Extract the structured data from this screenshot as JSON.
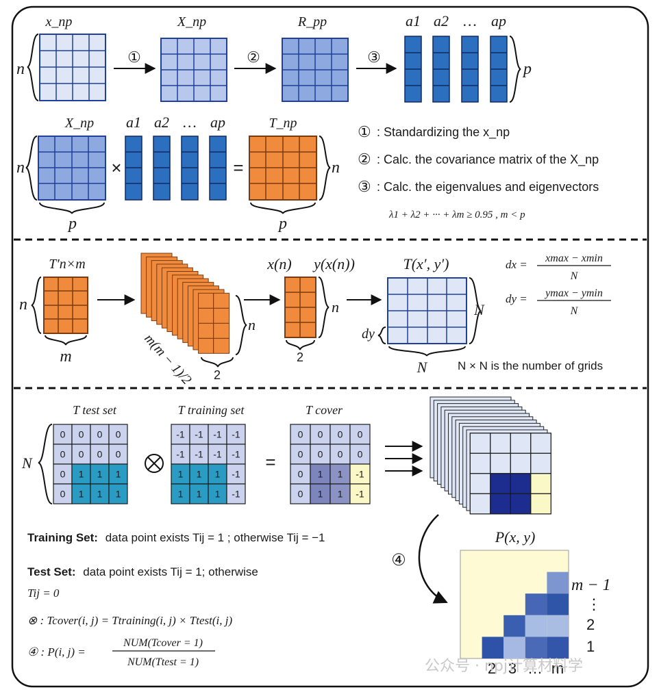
{
  "panel1": {
    "label_x_np": "x_np",
    "label_X_np": "X_np",
    "label_R_pp": "R_pp",
    "label_a1": "a1",
    "label_a2": "a2",
    "label_dots": "…",
    "label_ap": "ap",
    "label_T_np": "T_np",
    "label_n": "n",
    "label_p": "p",
    "step1": "①",
    "step2": "②",
    "step3": "③",
    "times_sign": "×",
    "equals_sign": "=",
    "legend": [
      {
        "marker": "①",
        "text": ": Standardizing the x_np"
      },
      {
        "marker": "②",
        "text": ": Calc. the covariance matrix of the X_np"
      },
      {
        "marker": "③",
        "text": ": Calc. the eigenvalues and eigenvectors"
      }
    ],
    "criterion": "λ1 + λ2 + ··· + λm ≥ 0.95 , m < p"
  },
  "panel2": {
    "label_T_nxm": "T′n×m",
    "label_n": "n",
    "label_m": "m",
    "label_pairs": "m(m − 1)/2",
    "label_two": "2",
    "label_xn": "x(n)",
    "label_yxn": "y(x(n))",
    "label_Txy": "T(x′, y′)",
    "label_N": "N",
    "label_dy": "dy",
    "dx_formula": {
      "lhs": "dx =",
      "num": "xmax − xmin",
      "den": "N"
    },
    "dy_formula": {
      "lhs": "dy =",
      "num": "ymax − ymin",
      "den": "N"
    },
    "grid_note": "N × N is the number of grids"
  },
  "panel3": {
    "label_test": "T test set",
    "label_training": "T training set",
    "label_cover": "T cover",
    "label_N": "N",
    "otimes": "⊗",
    "equals_sign": "=",
    "test_matrix": [
      [
        "0",
        "0",
        "0",
        "0"
      ],
      [
        "0",
        "0",
        "0",
        "0"
      ],
      [
        "0",
        "1",
        "1",
        "1"
      ],
      [
        "0",
        "1",
        "1",
        "1"
      ]
    ],
    "training_matrix": [
      [
        "-1",
        "-1",
        "-1",
        "-1"
      ],
      [
        "-1",
        "-1",
        "-1",
        "-1"
      ],
      [
        "1",
        "1",
        "1",
        "-1"
      ],
      [
        "1",
        "1",
        "1",
        "-1"
      ]
    ],
    "cover_matrix": [
      [
        "0",
        "0",
        "0",
        "0"
      ],
      [
        "0",
        "0",
        "0",
        "0"
      ],
      [
        "0",
        "1",
        "1",
        "-1"
      ],
      [
        "0",
        "1",
        "1",
        "-1"
      ]
    ],
    "P_label": "P(x, y)",
    "step4": "④",
    "axis_right": [
      "m − 1",
      "⋮",
      "2",
      "1"
    ],
    "axis_bottom": [
      "2",
      "3",
      "…",
      "m"
    ],
    "training_text": {
      "bold": "Training Set:",
      "rest": "data point exists Tij = 1 ; otherwise Tij = −1"
    },
    "test_text": {
      "bold": "Test Set:",
      "rest": "data point exists Tij = 1; otherwise",
      "line2": "Tij = 0"
    },
    "cover_formula": "⊗ :  Tcover(i, j) = Ttraining(i, j) × Ttest(i, j)",
    "prob_formula": {
      "lhs": "④ :  P(i, j) =",
      "num": "NUM(Tcover = 1)",
      "den": "NUM(Ttest = 1)"
    },
    "watermark": "公众号 · npj计算材料学"
  }
}
